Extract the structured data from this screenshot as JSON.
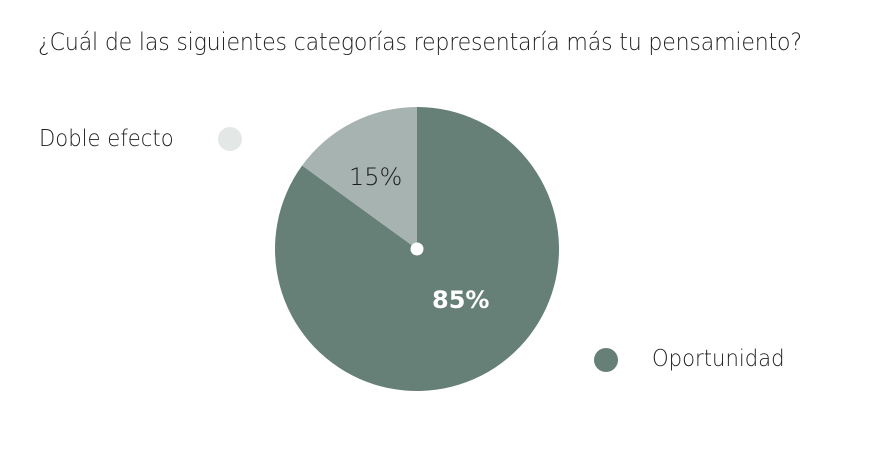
{
  "title": "¿Cuál de las siguientes categorías representaría más tu pensamiento?",
  "legend": [
    {
      "label": "Doble efecto",
      "color": "#e3e7e6"
    },
    {
      "label": "Oportunidad",
      "color": "#667f77"
    }
  ],
  "slice_labels": {
    "doble_efecto": "15%",
    "oportunidad": "85%"
  },
  "colors": {
    "oportunidad": "#667f77",
    "doble_efecto": "#a6b3b0",
    "center_dot": "#ffffff"
  },
  "chart_data": {
    "type": "pie",
    "title": "¿Cuál de las siguientes categorías representaría más tu pensamiento?",
    "categories": [
      "Oportunidad",
      "Doble efecto"
    ],
    "values": [
      85,
      15
    ],
    "unit": "%",
    "data_labels": [
      "85%",
      "15%"
    ],
    "legend_position": "split (Doble efecto top-left, Oportunidad bottom-right)"
  }
}
